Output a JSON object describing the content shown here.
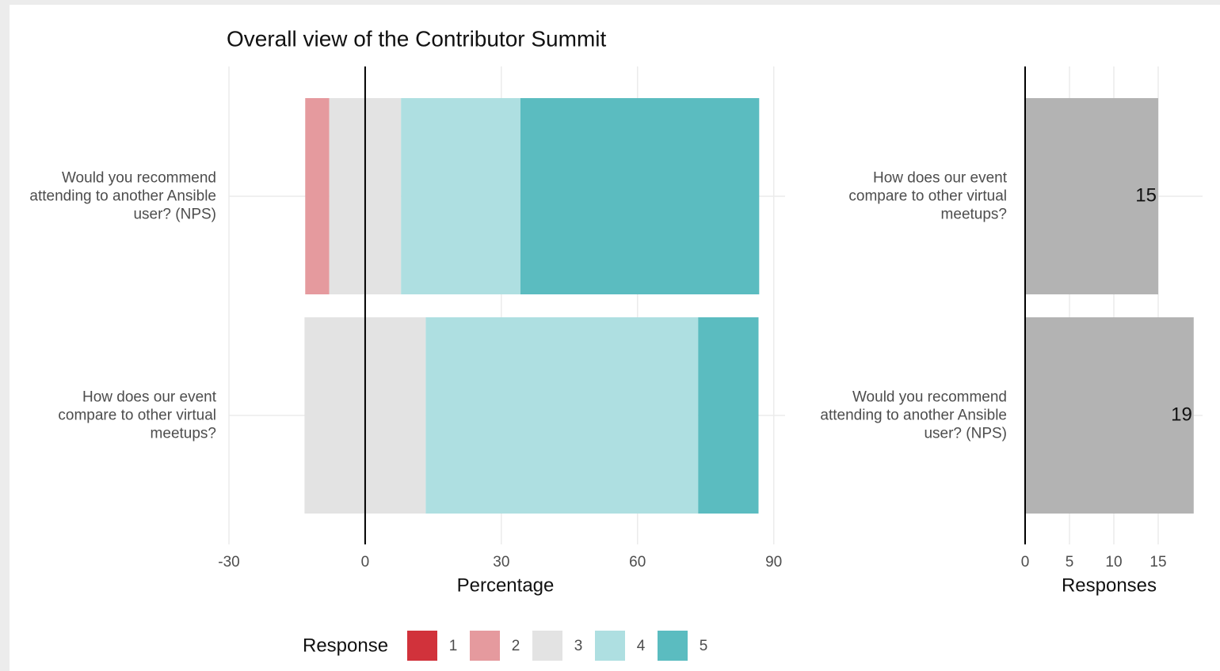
{
  "chart_data": [
    {
      "type": "diverging_bar",
      "title": "Overall view of the Contributor Summit",
      "xlabel": "Percentage",
      "categories": [
        "Would you recommend attending to another Ansible user? (NPS)",
        "How does our event compare to other virtual meetups?"
      ],
      "series": [
        {
          "name": "1",
          "color": "#d1323b",
          "values": [
            0,
            0
          ]
        },
        {
          "name": "2",
          "color": "#e59a9e",
          "values": [
            5.3,
            0
          ]
        },
        {
          "name": "3",
          "color": "#e3e3e3",
          "values": [
            15.8,
            26.7
          ]
        },
        {
          "name": "4",
          "color": "#aedfe1",
          "values": [
            26.3,
            60
          ]
        },
        {
          "name": "5",
          "color": "#5bbcc0",
          "values": [
            52.6,
            13.3
          ]
        }
      ],
      "legend_title": "Response",
      "legend": "bottom",
      "xlim": [
        -30,
        92.5
      ],
      "xticks": [
        -30,
        0,
        30,
        60,
        90
      ],
      "grid": true
    },
    {
      "type": "bar",
      "xlabel": "Responses",
      "categories": [
        "How does our event compare to other virtual meetups?",
        "Would you recommend attending to another Ansible user? (NPS)"
      ],
      "values": [
        15,
        19
      ],
      "color": "#b3b3b3",
      "xlim": [
        0,
        20
      ],
      "xticks": [
        0,
        5,
        10,
        15
      ],
      "grid": true
    }
  ]
}
